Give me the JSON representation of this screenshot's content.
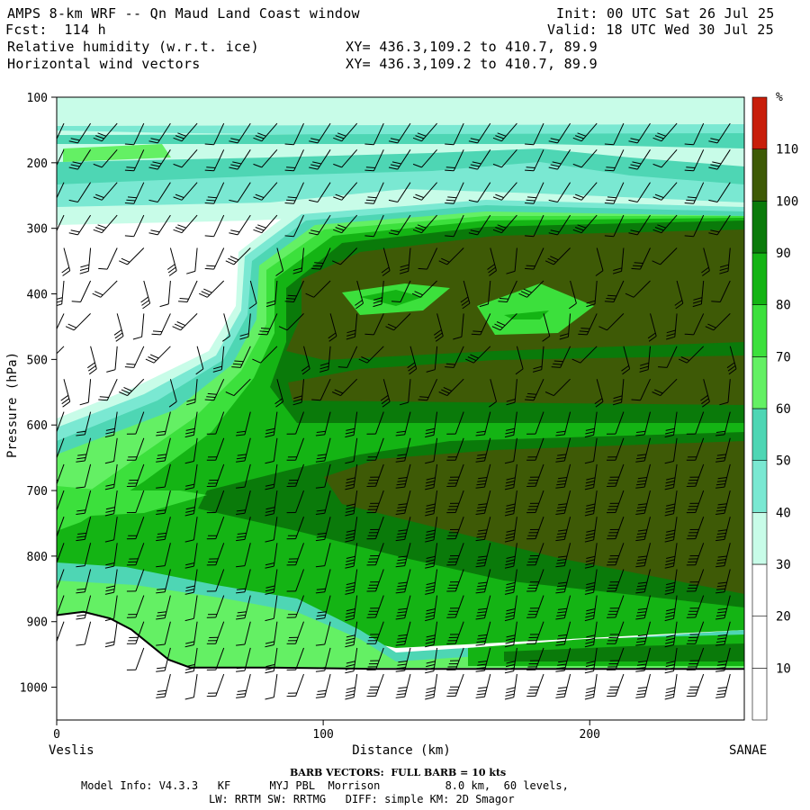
{
  "header": {
    "title": "AMPS 8-km WRF -- Qn Maud Land Coast window",
    "fcst": "Fcst:  114 h",
    "init": "Init: 00 UTC Sat 26 Jul 25",
    "valid": "Valid: 18 UTC Wed 30 Jul 25",
    "field1": "Relative humidity (w.r.t. ice)",
    "field2": "Horizontal wind vectors",
    "xy1": "XY= 436.3,109.2 to 410.7, 89.9",
    "xy2": "XY= 436.3,109.2 to 410.7, 89.9"
  },
  "chart_data": {
    "type": "heatmap",
    "title": "Relative humidity (w.r.t. ice)",
    "xlabel": "Distance (km)",
    "ylabel": "Pressure (hPa)",
    "xlim": [
      0,
      258
    ],
    "ylim": [
      1050,
      100
    ],
    "x_ticks": [
      "0",
      "100",
      "200"
    ],
    "x_tick_values": [
      0,
      100,
      200
    ],
    "y_ticks": [
      "100",
      "200",
      "300",
      "400",
      "500",
      "600",
      "700",
      "800",
      "900",
      "1000"
    ],
    "y_tick_values": [
      100,
      200,
      300,
      400,
      500,
      600,
      700,
      800,
      900,
      1000
    ],
    "left_endpoint": "Veslis",
    "right_endpoint": "SANAE",
    "colorbar": {
      "unit": "%",
      "labels": [
        "10",
        "20",
        "30",
        "40",
        "50",
        "60",
        "70",
        "80",
        "90",
        "100",
        "110"
      ],
      "bins": [
        {
          "range": [
            0,
            10
          ],
          "color": "#ffffff"
        },
        {
          "range": [
            10,
            20
          ],
          "color": "#ffffff"
        },
        {
          "range": [
            20,
            30
          ],
          "color": "#ffffff"
        },
        {
          "range": [
            30,
            40
          ],
          "color": "#c8fce8"
        },
        {
          "range": [
            40,
            50
          ],
          "color": "#7ae8d2"
        },
        {
          "range": [
            50,
            60
          ],
          "color": "#4ed6b4"
        },
        {
          "range": [
            60,
            70
          ],
          "color": "#64f064"
        },
        {
          "range": [
            70,
            80
          ],
          "color": "#3ce03c"
        },
        {
          "range": [
            80,
            90
          ],
          "color": "#14b414"
        },
        {
          "range": [
            90,
            100
          ],
          "color": "#0a7a0a"
        },
        {
          "range": [
            100,
            110
          ],
          "color": "#3e5a06"
        },
        {
          "range": [
            110,
            120
          ],
          "color": "#c81e0a"
        }
      ]
    },
    "terrain": [
      {
        "x": 0,
        "p": 890
      },
      {
        "x": 10,
        "p": 885
      },
      {
        "x": 20,
        "p": 895
      },
      {
        "x": 28,
        "p": 912
      },
      {
        "x": 35,
        "p": 935
      },
      {
        "x": 42,
        "p": 958
      },
      {
        "x": 50,
        "p": 970
      },
      {
        "x": 80,
        "p": 970
      },
      {
        "x": 120,
        "p": 972
      },
      {
        "x": 258,
        "p": 972
      }
    ],
    "barb_x_km": [
      0,
      10,
      20,
      30,
      40,
      50,
      60,
      70,
      80,
      90,
      100,
      110,
      120,
      130,
      140,
      150,
      160,
      170,
      180,
      190,
      200,
      210,
      220,
      230,
      240,
      250
    ],
    "barb_levels_hpa": [
      140,
      180,
      230,
      280,
      330,
      380,
      430,
      480,
      530,
      580,
      620,
      660,
      700,
      740,
      780,
      820,
      860,
      900,
      940,
      980
    ]
  },
  "footer": {
    "barb_info": "BARB VECTORS:  FULL BARB = 10 kts",
    "model_info": "Model Info: V4.3.3   KF      MYJ PBL  Morrison          8.0 km,  60 levels,",
    "physics": "LW: RRTM SW: RRTMG   DIFF: simple KM: 2D Smagor"
  }
}
